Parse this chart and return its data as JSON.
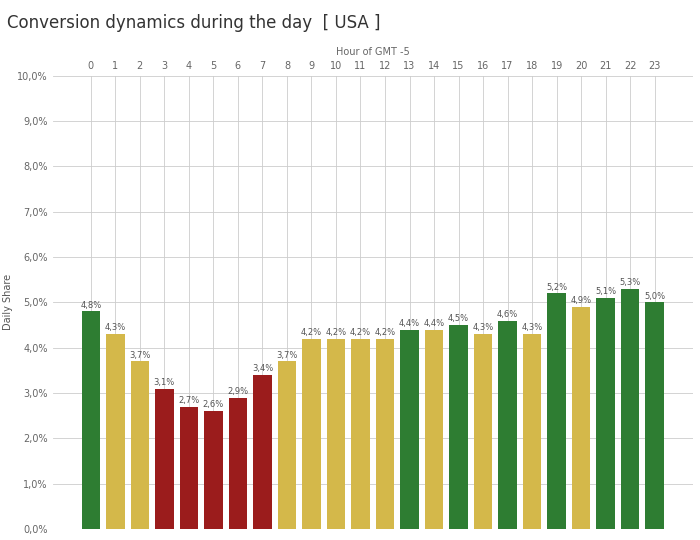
{
  "title": "Conversion dynamics during the day  [ USA ]",
  "xlabel": "Hour of GMT -5",
  "ylabel": "Daily Share",
  "hours": [
    0,
    1,
    2,
    3,
    4,
    5,
    6,
    7,
    8,
    9,
    10,
    11,
    12,
    13,
    14,
    15,
    16,
    17,
    18,
    19,
    20,
    21,
    22,
    23
  ],
  "values": [
    4.8,
    4.3,
    3.7,
    3.1,
    2.7,
    2.6,
    2.9,
    3.4,
    3.7,
    4.2,
    4.2,
    4.2,
    4.2,
    4.4,
    4.4,
    4.5,
    4.3,
    4.6,
    4.3,
    5.2,
    4.9,
    5.1,
    5.3,
    5.0
  ],
  "colors": [
    "#2e7d32",
    "#d4b84a",
    "#d4b84a",
    "#9b1c1c",
    "#9b1c1c",
    "#9b1c1c",
    "#9b1c1c",
    "#9b1c1c",
    "#d4b84a",
    "#d4b84a",
    "#d4b84a",
    "#d4b84a",
    "#d4b84a",
    "#2e7d32",
    "#d4b84a",
    "#2e7d32",
    "#d4b84a",
    "#2e7d32",
    "#d4b84a",
    "#2e7d32",
    "#d4b84a",
    "#2e7d32",
    "#2e7d32",
    "#2e7d32"
  ],
  "ylim": [
    0,
    10.0
  ],
  "yticks": [
    0.0,
    1.0,
    2.0,
    3.0,
    4.0,
    5.0,
    6.0,
    7.0,
    8.0,
    9.0,
    10.0
  ],
  "ytick_labels": [
    "0,0%",
    "1,0%",
    "2,0%",
    "3,0%",
    "4,0%",
    "5,0%",
    "6,0%",
    "7,0%",
    "8,0%",
    "9,0%",
    "10,0%"
  ],
  "bg_color": "#ffffff",
  "grid_color": "#cccccc",
  "title_fontsize": 12,
  "axis_label_fontsize": 7,
  "tick_fontsize": 7,
  "bar_label_fontsize": 6
}
